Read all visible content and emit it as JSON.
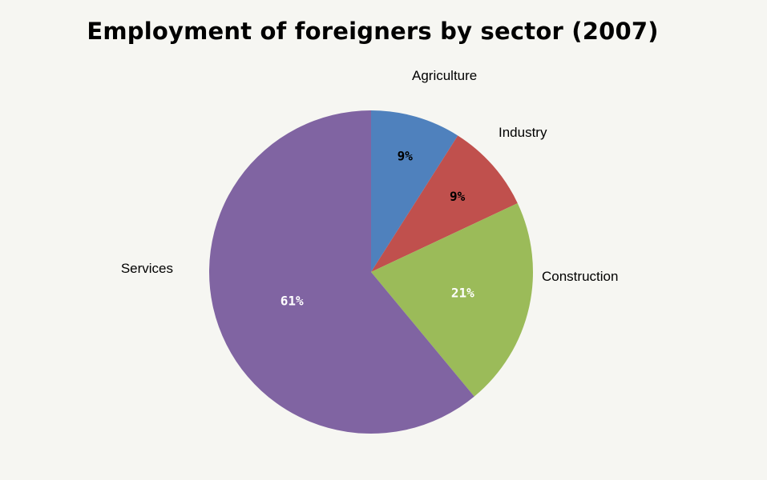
{
  "chart_data": {
    "type": "pie",
    "title": "Employment of foreigners by sector (2007)",
    "categories": [
      "Agriculture",
      "Industry",
      "Construction",
      "Services"
    ],
    "values": [
      9,
      9,
      21,
      61
    ],
    "value_labels": [
      "9%",
      "9%",
      "21%",
      "61%"
    ],
    "colors": [
      "#4f81bd",
      "#c0504d",
      "#9bbb59",
      "#8064a2"
    ],
    "value_label_colors": [
      "#000000",
      "#000000",
      "#ffffff",
      "#ffffff"
    ],
    "start_angle_deg": 0,
    "direction": "clockwise",
    "legend": "none (outside slice labels)"
  }
}
